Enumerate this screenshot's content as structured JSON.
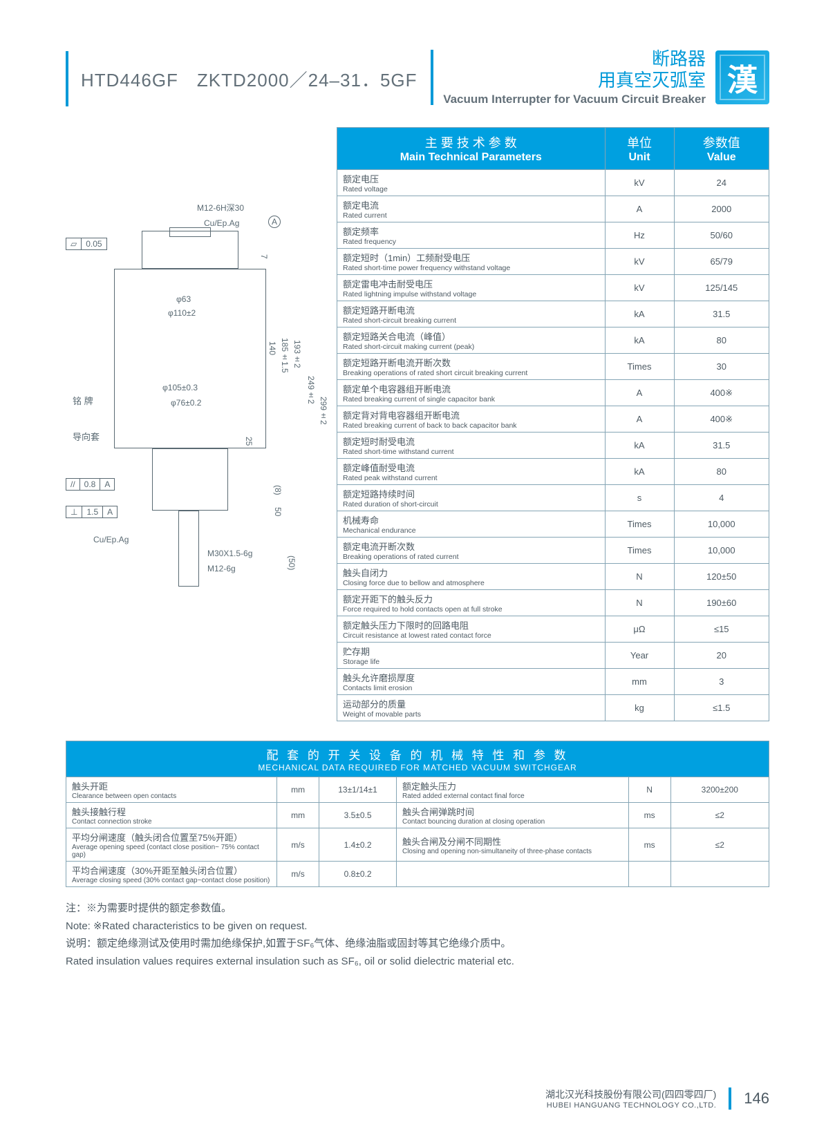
{
  "header": {
    "model": "HTD446GF　ZKTD2000／24–31．5GF",
    "title_cn_line1": "断路器",
    "title_cn_line2": "用真空灭弧室",
    "title_en": "Vacuum Interrupter for Vacuum Circuit Breaker",
    "logo_glyph": "漢"
  },
  "drawing": {
    "top_thread": "M12-6H深30",
    "coating_top": "Cu/Ep.Ag",
    "datum_a": "A",
    "flatness": "0.05",
    "d1": "φ63",
    "d2": "φ110±2",
    "d3": "φ105±0.3",
    "d4": "φ76±0.2",
    "label_ming": "铭  牌",
    "label_guide": "导向套",
    "dim_seven": "7",
    "dim_140": "140",
    "dim_185": "185±1.5",
    "dim_193": "193±2",
    "dim_249": "249±2",
    "dim_299": "299±2",
    "dim_25": "25",
    "dim_8": "(8)",
    "dim_50": "50",
    "dim_50p": "(50)",
    "gdt_par": "0.8",
    "gdt_perp": "1.5",
    "coating_bot": "Cu/Ep.Ag",
    "thread1": "M30X1.5-6g",
    "thread2": "M12-6g"
  },
  "main_table": {
    "head_param_cn": "主 要 技 术 参 数",
    "head_param_en": "Main Technical Parameters",
    "head_unit_cn": "单位",
    "head_unit_en": "Unit",
    "head_val_cn": "参数值",
    "head_val_en": "Value",
    "rows": [
      {
        "cn": "额定电压",
        "en": "Rated voltage",
        "unit": "kV",
        "val": "24"
      },
      {
        "cn": "额定电流",
        "en": "Rated current",
        "unit": "A",
        "val": "2000"
      },
      {
        "cn": "额定频率",
        "en": "Rated frequency",
        "unit": "Hz",
        "val": "50/60"
      },
      {
        "cn": "额定短时（1min）工频耐受电压",
        "en": "Rated short-time power frequency withstand voltage",
        "unit": "kV",
        "val": "65/79"
      },
      {
        "cn": "额定雷电冲击耐受电压",
        "en": "Rated lightning impulse withstand voltage",
        "unit": "kV",
        "val": "125/145"
      },
      {
        "cn": "额定短路开断电流",
        "en": "Rated short-circuit breaking current",
        "unit": "kA",
        "val": "31.5"
      },
      {
        "cn": "额定短路关合电流（峰值）",
        "en": "Rated short-circuit making current (peak)",
        "unit": "kA",
        "val": "80"
      },
      {
        "cn": "额定短路开断电流开断次数",
        "en": "Breaking operations of rated short circuit breaking current",
        "unit": "Times",
        "val": "30"
      },
      {
        "cn": "额定单个电容器组开断电流",
        "en": "Rated breaking current of single capacitor bank",
        "unit": "A",
        "val": "400※"
      },
      {
        "cn": "额定背对背电容器组开断电流",
        "en": "Rated breaking current of back to back capacitor bank",
        "unit": "A",
        "val": "400※"
      },
      {
        "cn": "额定短时耐受电流",
        "en": "Rated short-time withstand current",
        "unit": "kA",
        "val": "31.5"
      },
      {
        "cn": "额定峰值耐受电流",
        "en": "Rated peak withstand current",
        "unit": "kA",
        "val": "80"
      },
      {
        "cn": "额定短路持续时间",
        "en": "Rated duration of short-circuit",
        "unit": "s",
        "val": "4"
      },
      {
        "cn": "机械寿命",
        "en": "Mechanical endurance",
        "unit": "Times",
        "val": "10,000"
      },
      {
        "cn": "额定电流开断次数",
        "en": "Breaking operations of rated current",
        "unit": "Times",
        "val": "10,000"
      },
      {
        "cn": "触头自闭力",
        "en": "Closing force due to bellow and atmosphere",
        "unit": "N",
        "val": "120±50"
      },
      {
        "cn": "额定开距下的触头反力",
        "en": "Force required to hold contacts open at full stroke",
        "unit": "N",
        "val": "190±60"
      },
      {
        "cn": "额定触头压力下限时的回路电阻",
        "en": "Circuit resistance at lowest rated contact force",
        "unit": "μΩ",
        "val": "≤15"
      },
      {
        "cn": "贮存期",
        "en": "Storage life",
        "unit": "Year",
        "val": "20"
      },
      {
        "cn": "触头允许磨损厚度",
        "en": "Contacts limit erosion",
        "unit": "mm",
        "val": "3"
      },
      {
        "cn": "运动部分的质量",
        "en": "Weight of movable parts",
        "unit": "kg",
        "val": "≤1.5"
      }
    ]
  },
  "mech_table": {
    "title_cn": "配 套 的 开 关 设 备 的 机 械 特 性 和 参 数",
    "title_en": "MECHANICAL DATA REQUIRED FOR MATCHED VACUUM SWITCHGEAR",
    "rows": [
      {
        "l_cn": "触头开距",
        "l_en": "Clearance between open contacts",
        "l_u": "mm",
        "l_v": "13±1/14±1",
        "r_cn": "额定触头压力",
        "r_en": "Rated added external contact final force",
        "r_u": "N",
        "r_v": "3200±200"
      },
      {
        "l_cn": "触头接触行程",
        "l_en": "Contact connection stroke",
        "l_u": "mm",
        "l_v": "3.5±0.5",
        "r_cn": "触头合闸弹跳时间",
        "r_en": "Contact bouncing duration at closing operation",
        "r_u": "ms",
        "r_v": "≤2"
      },
      {
        "l_cn": "平均分闸速度（触头闭合位置至75%开距）",
        "l_en": "Average opening speed (contact close position~ 75% contact gap)",
        "l_u": "m/s",
        "l_v": "1.4±0.2",
        "r_cn": "触头合闸及分闸不同期性",
        "r_en": "Closing and opening non-simultaneity of three-phase contacts",
        "r_u": "ms",
        "r_v": "≤2"
      },
      {
        "l_cn": "平均合闸速度（30%开距至触头闭合位置）",
        "l_en": "Average closing speed (30% contact gap~contact close position)",
        "l_u": "m/s",
        "l_v": "0.8±0.2",
        "r_cn": "",
        "r_en": "",
        "r_u": "",
        "r_v": ""
      }
    ]
  },
  "notes": {
    "n1_cn": "注：※为需要时提供的额定参数值。",
    "n1_en": "Note: ※Rated characteristics to be given on request.",
    "n2_cn": "说明：额定绝缘测试及使用时需加绝缘保护,如置于SF₆气体、绝缘油脂或固封等其它绝缘介质中。",
    "n2_en": "Rated insulation values requires external insulation such as SF₆, oil or solid dielectric material etc."
  },
  "footer": {
    "company_cn": "湖北汉光科技股份有限公司(四四零四厂)",
    "company_en": "HUBEI HANGUANG TECHNOLOGY CO.,LTD.",
    "page": "146"
  },
  "colors": {
    "accent": "#00a0e0",
    "text": "#4d5a63",
    "border": "#85a5b5"
  }
}
